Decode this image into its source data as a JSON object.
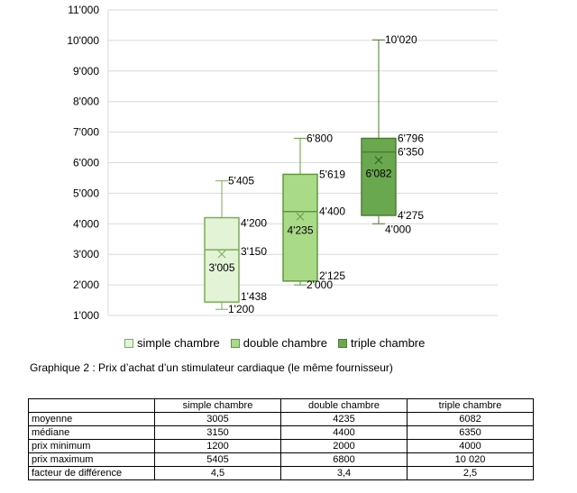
{
  "chart_data": {
    "type": "box",
    "ylim": [
      1000,
      11000
    ],
    "y_ticks": [
      "1'000",
      "2'000",
      "3'000",
      "4'000",
      "5'000",
      "6'000",
      "7'000",
      "8'000",
      "9'000",
      "10'000",
      "11'000"
    ],
    "grid": true,
    "series": [
      {
        "name": "simple chambre",
        "min": 1200,
        "q1": 1438,
        "median": 3150,
        "q3": 4200,
        "max": 5405,
        "mean": 3005,
        "labels": {
          "min": "1'200",
          "q1": "1'438",
          "median": "3'150",
          "q3": "4'200",
          "max": "5'405",
          "mean": "3'005"
        },
        "fill": "#e2f3d6",
        "stroke": "#7aab58"
      },
      {
        "name": "double chambre",
        "min": 2000,
        "q1": 2125,
        "median": 4400,
        "q3": 5619,
        "max": 6800,
        "mean": 4235,
        "labels": {
          "min": "2'000",
          "q1": "2'125",
          "median": "4'400",
          "q3": "5'619",
          "max": "6'800",
          "mean": "4'235"
        },
        "fill": "#a8da87",
        "stroke": "#5e9a3b"
      },
      {
        "name": "triple chambre",
        "min": 4000,
        "q1": 4275,
        "median": 6350,
        "q3": 6796,
        "max": 10020,
        "mean": 6082,
        "labels": {
          "min": "4'000",
          "q1": "4'275",
          "median": "6'350",
          "q3": "6'796",
          "max": "10'020",
          "mean": "6'082"
        },
        "fill": "#6aa84f",
        "stroke": "#4b7d33"
      }
    ],
    "legend_position": "bottom"
  },
  "caption": "Graphique 2 : Prix d’achat d’un stimulateur cardiaque (le même fournisseur)",
  "table": {
    "headers": [
      "",
      "simple chambre",
      "double chambre",
      "triple chambre"
    ],
    "rows": [
      [
        "moyenne",
        "3005",
        "4235",
        "6082"
      ],
      [
        "médiane",
        "3150",
        "4400",
        "6350"
      ],
      [
        "prix minimum",
        "1200",
        "2000",
        "4000"
      ],
      [
        "prix maximum",
        "5405",
        "6800",
        "10 020"
      ],
      [
        "facteur de différence",
        "4,5",
        "3,4",
        "2,5"
      ]
    ]
  }
}
